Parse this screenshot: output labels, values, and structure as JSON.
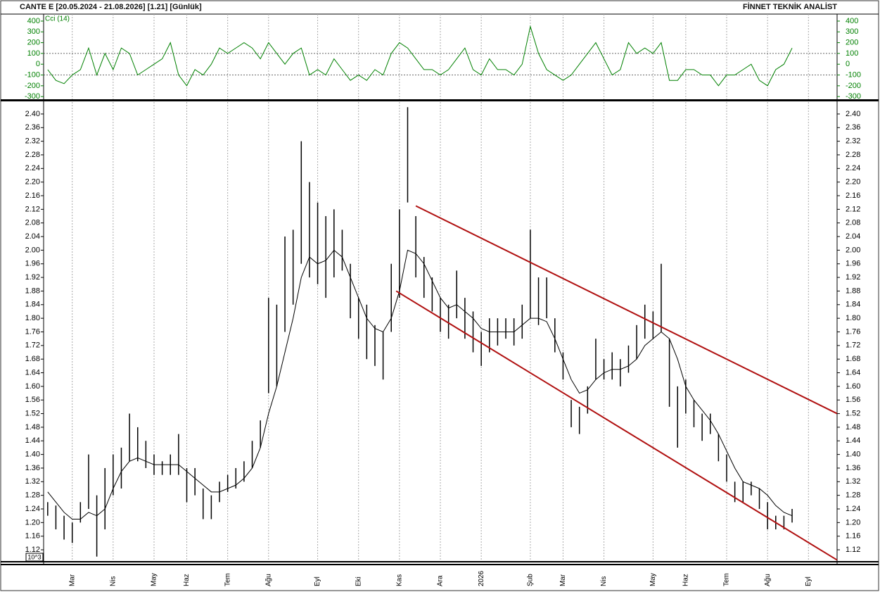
{
  "header": {
    "title": "CANTE E  [20.05.2024 - 21.08.2026]  [1.21]  [Günlük]",
    "brand": "FİNNET TEKNİK ANALİST",
    "scale_note": "10^3"
  },
  "chart_data": [
    {
      "type": "line",
      "title": "Cci (14)",
      "color": "#008000",
      "ylim": [
        -325,
        465
      ],
      "yticks": [
        -300,
        -200,
        -100,
        0,
        100,
        200,
        300,
        400
      ],
      "hlines": [
        100,
        -100
      ],
      "values": [
        -50,
        -150,
        -180,
        -100,
        -50,
        150,
        -100,
        100,
        -50,
        150,
        100,
        -100,
        -50,
        0,
        50,
        200,
        -100,
        -200,
        -50,
        -100,
        0,
        150,
        100,
        150,
        200,
        150,
        50,
        200,
        100,
        0,
        100,
        150,
        -100,
        -50,
        -100,
        50,
        -50,
        -150,
        -100,
        -150,
        -50,
        -100,
        100,
        200,
        150,
        50,
        -50,
        -50,
        -100,
        -50,
        50,
        150,
        -50,
        -100,
        50,
        -50,
        -50,
        -100,
        0,
        350,
        100,
        -50,
        -100,
        -150,
        -100,
        0,
        100,
        200,
        50,
        -100,
        -50,
        200,
        100,
        150,
        100,
        200,
        -150,
        -150,
        -50,
        -50,
        -100,
        -100,
        -200,
        -100,
        -100,
        -50,
        0,
        -150,
        -200,
        -50,
        0,
        150,
        null,
        null,
        null,
        null,
        null
      ]
    },
    {
      "type": "hilo",
      "color": "#000000",
      "ma_color": "#000000",
      "channel_color": "#b01010",
      "ylim": [
        1.087,
        2.435
      ],
      "categories": [
        null,
        null,
        null,
        "Mar",
        null,
        null,
        null,
        null,
        "Nis",
        null,
        null,
        null,
        null,
        "May",
        null,
        null,
        null,
        "Haz",
        null,
        null,
        null,
        null,
        "Tem",
        null,
        null,
        null,
        null,
        "Ağu",
        null,
        null,
        null,
        null,
        null,
        "Eyl",
        null,
        null,
        null,
        null,
        "Eki",
        null,
        null,
        null,
        null,
        "Kas",
        null,
        null,
        null,
        null,
        "Ara",
        null,
        null,
        null,
        null,
        "2026",
        null,
        null,
        null,
        null,
        null,
        "Şub",
        null,
        null,
        null,
        "Mar",
        null,
        null,
        null,
        null,
        "Nis",
        null,
        null,
        null,
        null,
        null,
        "May",
        null,
        null,
        null,
        "Haz",
        null,
        null,
        null,
        null,
        "Tem",
        null,
        null,
        null,
        null,
        "Ağu",
        null,
        null,
        null,
        null,
        "Eyl",
        null,
        null,
        null
      ],
      "yticks": [
        1.12,
        1.16,
        {
          "value": 1.2,
          "label": "1.20"
        },
        1.24,
        1.28,
        1.32,
        1.36,
        {
          "value": 1.4,
          "label": "1.40"
        },
        1.44,
        1.48,
        1.52,
        1.56,
        {
          "value": 1.6,
          "label": "1.60"
        },
        1.64,
        1.68,
        1.72,
        1.76,
        {
          "value": 1.8,
          "label": "1.80"
        },
        1.84,
        1.88,
        1.92,
        1.96,
        {
          "value": 2.0,
          "label": "2.00"
        },
        2.04,
        2.08,
        2.12,
        2.16,
        {
          "value": 2.2,
          "label": "2.20"
        },
        2.24,
        2.28,
        2.32,
        2.36,
        {
          "value": 2.4,
          "label": "2.40"
        }
      ],
      "high": [
        1.26,
        1.25,
        1.22,
        1.2,
        1.26,
        1.4,
        1.28,
        1.36,
        1.4,
        1.42,
        1.52,
        1.48,
        1.44,
        1.4,
        1.38,
        1.4,
        1.46,
        1.36,
        1.36,
        1.3,
        1.28,
        1.32,
        1.34,
        1.36,
        1.38,
        1.44,
        1.5,
        1.86,
        1.84,
        2.04,
        2.06,
        2.32,
        2.2,
        2.14,
        2.1,
        2.12,
        2.06,
        1.96,
        1.86,
        1.84,
        1.78,
        1.76,
        1.96,
        2.12,
        2.42,
        2.1,
        1.98,
        1.92,
        1.86,
        1.84,
        1.94,
        1.86,
        1.82,
        1.76,
        1.8,
        1.8,
        1.8,
        1.8,
        1.84,
        2.06,
        1.92,
        1.92,
        1.8,
        1.7,
        1.56,
        1.54,
        1.6,
        1.74,
        1.68,
        1.7,
        1.68,
        1.72,
        1.78,
        1.84,
        1.82,
        1.96,
        1.74,
        1.6,
        1.62,
        1.56,
        1.52,
        1.52,
        1.46,
        1.4,
        1.32,
        1.32,
        1.32,
        1.3,
        1.26,
        1.22,
        1.22,
        1.24,
        null,
        null,
        null,
        null,
        null
      ],
      "low": [
        1.22,
        1.18,
        1.15,
        1.14,
        1.2,
        1.24,
        1.1,
        1.18,
        1.28,
        1.3,
        1.38,
        1.38,
        1.36,
        1.34,
        1.34,
        1.34,
        1.34,
        1.26,
        1.28,
        1.21,
        1.21,
        1.26,
        1.29,
        1.3,
        1.32,
        1.36,
        1.42,
        1.58,
        1.6,
        1.76,
        1.84,
        1.96,
        1.92,
        1.9,
        1.86,
        1.92,
        1.94,
        1.8,
        1.74,
        1.68,
        1.66,
        1.62,
        1.76,
        1.86,
        2.14,
        1.92,
        1.86,
        1.82,
        1.76,
        1.74,
        1.8,
        1.74,
        1.7,
        1.66,
        1.7,
        1.72,
        1.74,
        1.72,
        1.74,
        1.8,
        1.78,
        1.8,
        1.7,
        1.62,
        1.48,
        1.46,
        1.52,
        1.62,
        1.62,
        1.62,
        1.6,
        1.64,
        1.68,
        1.74,
        1.74,
        1.76,
        1.54,
        1.42,
        1.52,
        1.48,
        1.44,
        1.46,
        1.38,
        1.32,
        1.26,
        1.26,
        1.28,
        1.24,
        1.18,
        1.18,
        1.18,
        1.2,
        null,
        null,
        null,
        null,
        null
      ],
      "ma": [
        1.29,
        1.26,
        1.23,
        1.21,
        1.21,
        1.23,
        1.22,
        1.24,
        1.3,
        1.35,
        1.38,
        1.39,
        1.38,
        1.37,
        1.37,
        1.37,
        1.37,
        1.35,
        1.33,
        1.31,
        1.29,
        1.29,
        1.3,
        1.31,
        1.33,
        1.36,
        1.42,
        1.52,
        1.6,
        1.7,
        1.8,
        1.92,
        1.98,
        1.96,
        1.97,
        2.0,
        1.98,
        1.92,
        1.86,
        1.8,
        1.77,
        1.76,
        1.8,
        1.88,
        2.0,
        1.99,
        1.96,
        1.91,
        1.86,
        1.83,
        1.84,
        1.82,
        1.8,
        1.77,
        1.76,
        1.76,
        1.76,
        1.76,
        1.78,
        1.8,
        1.8,
        1.79,
        1.74,
        1.68,
        1.62,
        1.58,
        1.59,
        1.62,
        1.64,
        1.65,
        1.65,
        1.66,
        1.68,
        1.72,
        1.74,
        1.76,
        1.74,
        1.68,
        1.6,
        1.56,
        1.53,
        1.5,
        1.46,
        1.41,
        1.36,
        1.32,
        1.31,
        1.3,
        1.28,
        1.25,
        1.23,
        1.22,
        null,
        null,
        null,
        null,
        null
      ],
      "channels": [
        {
          "from": {
            "x": 45,
            "y": 2.13
          },
          "to": {
            "x": 96.5,
            "y": 1.52
          }
        },
        {
          "from": {
            "x": 42.6,
            "y": 1.88
          },
          "to": {
            "x": 96.5,
            "y": 1.09
          }
        }
      ]
    }
  ]
}
